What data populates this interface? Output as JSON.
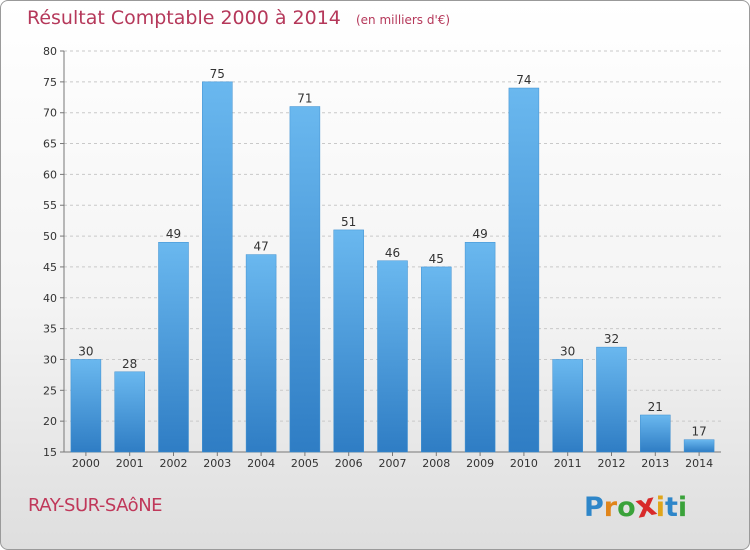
{
  "chart_data": {
    "type": "bar",
    "title": "Résultat Comptable 2000 à 2014",
    "subtitle": "(en milliers d'€)",
    "categories": [
      "2000",
      "2001",
      "2002",
      "2003",
      "2004",
      "2005",
      "2006",
      "2007",
      "2008",
      "2009",
      "2010",
      "2011",
      "2012",
      "2013",
      "2014"
    ],
    "values": [
      30,
      28,
      49,
      75,
      47,
      71,
      51,
      46,
      45,
      49,
      74,
      30,
      32,
      21,
      17
    ],
    "ylim": [
      15,
      80
    ],
    "yticks": [
      15,
      20,
      25,
      30,
      35,
      40,
      45,
      50,
      55,
      60,
      65,
      70,
      75,
      80
    ],
    "grid": true,
    "bar_color_light": "#6ab8ef",
    "bar_color_dark": "#2f7dc4",
    "label_color": "#333333"
  },
  "location": "RAY-SUR-SAôNE",
  "logo": {
    "letters": [
      "P",
      "r",
      "o",
      "x",
      "i",
      "t",
      "i"
    ],
    "colors": [
      "#2e86c9",
      "#e0851a",
      "#3aa23a",
      "#d82a2a",
      "#e0a51a",
      "#2e86c9",
      "#3aa23a"
    ]
  }
}
